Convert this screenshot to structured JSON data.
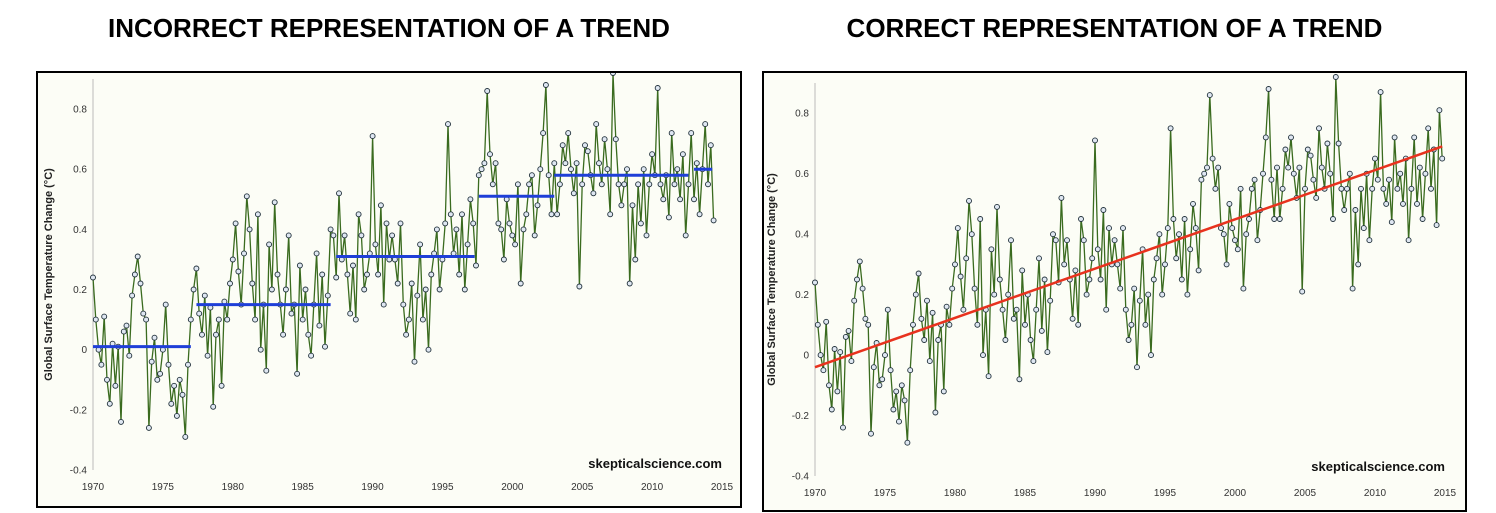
{
  "titles": {
    "left": "INCORRECT REPRESENTATION  OF A TREND",
    "right": "CORRECT REPRESENTATION  OF A TREND"
  },
  "chart_data": [
    {
      "type": "line",
      "ylabel": "Global Surface Temperature Change (°C)",
      "xlim": [
        1970,
        2015
      ],
      "ylim": [
        -0.4,
        0.9
      ],
      "x_ticks": [
        "1970",
        "1975",
        "1980",
        "1985",
        "1990",
        "1995",
        "2000",
        "2005",
        "2010",
        "2015"
      ],
      "y_ticks": [
        "-0.4",
        "-0.2",
        "0",
        "0.2",
        "0.4",
        "0.6",
        "0.8"
      ],
      "grid": false,
      "watermark": "skepticalscience.com",
      "series_color": "#3a6b1f",
      "marker_color": "#dfe7f2",
      "x": [
        1970.0,
        1970.2,
        1970.4,
        1970.6,
        1970.8,
        1971.0,
        1971.2,
        1971.4,
        1971.6,
        1971.8,
        1972.0,
        1972.2,
        1972.4,
        1972.6,
        1972.8,
        1973.0,
        1973.2,
        1973.4,
        1973.6,
        1973.8,
        1974.0,
        1974.2,
        1974.4,
        1974.6,
        1974.8,
        1975.0,
        1975.2,
        1975.4,
        1975.6,
        1975.8,
        1976.0,
        1976.2,
        1976.4,
        1976.6,
        1976.8,
        1977.0,
        1977.2,
        1977.4,
        1977.6,
        1977.8,
        1978.0,
        1978.2,
        1978.4,
        1978.6,
        1978.8,
        1979.0,
        1979.2,
        1979.4,
        1979.6,
        1979.8,
        1980.0,
        1980.2,
        1980.4,
        1980.6,
        1980.8,
        1981.0,
        1981.2,
        1981.4,
        1981.6,
        1981.8,
        1982.0,
        1982.2,
        1982.4,
        1982.6,
        1982.8,
        1983.0,
        1983.2,
        1983.4,
        1983.6,
        1983.8,
        1984.0,
        1984.2,
        1984.4,
        1984.6,
        1984.8,
        1985.0,
        1985.2,
        1985.4,
        1985.6,
        1985.8,
        1986.0,
        1986.2,
        1986.4,
        1986.6,
        1986.8,
        1987.0,
        1987.2,
        1987.4,
        1987.6,
        1987.8,
        1988.0,
        1988.2,
        1988.4,
        1988.6,
        1988.8,
        1989.0,
        1989.2,
        1989.4,
        1989.6,
        1989.8,
        1990.0,
        1990.2,
        1990.4,
        1990.6,
        1990.8,
        1991.0,
        1991.2,
        1991.4,
        1991.6,
        1991.8,
        1992.0,
        1992.2,
        1992.4,
        1992.6,
        1992.8,
        1993.0,
        1993.2,
        1993.4,
        1993.6,
        1993.8,
        1994.0,
        1994.2,
        1994.4,
        1994.6,
        1994.8,
        1995.0,
        1995.2,
        1995.4,
        1995.6,
        1995.8,
        1996.0,
        1996.2,
        1996.4,
        1996.6,
        1996.8,
        1997.0,
        1997.2,
        1997.4,
        1997.6,
        1997.8,
        1998.0,
        1998.2,
        1998.4,
        1998.6,
        1998.8,
        1999.0,
        1999.2,
        1999.4,
        1999.6,
        1999.8,
        2000.0,
        2000.2,
        2000.4,
        2000.6,
        2000.8,
        2001.0,
        2001.2,
        2001.4,
        2001.6,
        2001.8,
        2002.0,
        2002.2,
        2002.4,
        2002.6,
        2002.8,
        2003.0,
        2003.2,
        2003.4,
        2003.6,
        2003.8,
        2004.0,
        2004.2,
        2004.4,
        2004.6,
        2004.8,
        2005.0,
        2005.2,
        2005.4,
        2005.6,
        2005.8,
        2006.0,
        2006.2,
        2006.4,
        2006.6,
        2006.8,
        2007.0,
        2007.2,
        2007.4,
        2007.6,
        2007.8,
        2008.0,
        2008.2,
        2008.4,
        2008.6,
        2008.8,
        2009.0,
        2009.2,
        2009.4,
        2009.6,
        2009.8,
        2010.0,
        2010.2,
        2010.4,
        2010.6,
        2010.8,
        2011.0,
        2011.2,
        2011.4,
        2011.6,
        2011.8,
        2012.0,
        2012.2,
        2012.4,
        2012.6,
        2012.8,
        2013.0,
        2013.2,
        2013.4,
        2013.6,
        2013.8,
        2014.0,
        2014.2,
        2014.4
      ],
      "y": [
        0.24,
        0.1,
        0.0,
        -0.05,
        0.11,
        -0.1,
        -0.18,
        0.02,
        -0.12,
        0.01,
        -0.24,
        0.06,
        0.08,
        -0.02,
        0.18,
        0.25,
        0.31,
        0.22,
        0.12,
        0.1,
        -0.26,
        -0.04,
        0.04,
        -0.1,
        -0.08,
        0.0,
        0.15,
        -0.05,
        -0.18,
        -0.12,
        -0.22,
        -0.1,
        -0.15,
        -0.29,
        -0.05,
        0.1,
        0.2,
        0.27,
        0.12,
        0.05,
        0.18,
        -0.02,
        0.14,
        -0.19,
        0.05,
        0.1,
        -0.12,
        0.16,
        0.1,
        0.22,
        0.3,
        0.42,
        0.26,
        0.15,
        0.32,
        0.51,
        0.4,
        0.22,
        0.1,
        0.45,
        0.0,
        0.15,
        -0.07,
        0.35,
        0.2,
        0.49,
        0.25,
        0.15,
        0.05,
        0.2,
        0.38,
        0.12,
        0.15,
        -0.08,
        0.28,
        0.1,
        0.2,
        0.05,
        -0.02,
        0.15,
        0.32,
        0.08,
        0.25,
        0.01,
        0.18,
        0.4,
        0.38,
        0.24,
        0.52,
        0.3,
        0.38,
        0.25,
        0.12,
        0.28,
        0.1,
        0.45,
        0.38,
        0.2,
        0.25,
        0.32,
        0.71,
        0.35,
        0.25,
        0.48,
        0.15,
        0.42,
        0.3,
        0.38,
        0.3,
        0.22,
        0.42,
        0.15,
        0.05,
        0.1,
        0.22,
        -0.04,
        0.18,
        0.35,
        0.1,
        0.2,
        0.0,
        0.25,
        0.32,
        0.4,
        0.2,
        0.3,
        0.42,
        0.75,
        0.45,
        0.32,
        0.4,
        0.25,
        0.45,
        0.2,
        0.35,
        0.5,
        0.42,
        0.28,
        0.58,
        0.6,
        0.62,
        0.86,
        0.65,
        0.55,
        0.62,
        0.42,
        0.4,
        0.3,
        0.5,
        0.42,
        0.38,
        0.35,
        0.55,
        0.22,
        0.4,
        0.45,
        0.55,
        0.58,
        0.38,
        0.48,
        0.6,
        0.72,
        0.88,
        0.58,
        0.45,
        0.62,
        0.45,
        0.55,
        0.68,
        0.62,
        0.72,
        0.6,
        0.52,
        0.62,
        0.21,
        0.55,
        0.68,
        0.66,
        0.58,
        0.52,
        0.75,
        0.62,
        0.55,
        0.7,
        0.6,
        0.45,
        0.92,
        0.7,
        0.55,
        0.48,
        0.55,
        0.6,
        0.22,
        0.48,
        0.3,
        0.55,
        0.42,
        0.6,
        0.38,
        0.55,
        0.65,
        0.58,
        0.87,
        0.55,
        0.5,
        0.58,
        0.44,
        0.72,
        0.55,
        0.6,
        0.5,
        0.65,
        0.38,
        0.55,
        0.72,
        0.5,
        0.62,
        0.45,
        0.6,
        0.75,
        0.55,
        0.68,
        0.43
      ],
      "segments": [
        {
          "x0": 1970.0,
          "x1": 1977.0,
          "value": 0.01
        },
        {
          "x0": 1977.4,
          "x1": 1987.0,
          "value": 0.15
        },
        {
          "x0": 1987.4,
          "x1": 1997.3,
          "value": 0.31
        },
        {
          "x0": 1997.6,
          "x1": 2003.0,
          "value": 0.51
        },
        {
          "x0": 2003.0,
          "x1": 2012.6,
          "value": 0.58
        },
        {
          "x0": 2013.0,
          "x1": 2014.3,
          "value": 0.6
        }
      ],
      "segment_color": "#1f3fd8"
    },
    {
      "type": "line",
      "ylabel": "Global Surface Temperature Change (°C)",
      "xlim": [
        1970,
        2015
      ],
      "ylim": [
        -0.4,
        0.9
      ],
      "x_ticks": [
        "1970",
        "1975",
        "1980",
        "1985",
        "1990",
        "1995",
        "2000",
        "2005",
        "2010",
        "2015"
      ],
      "y_ticks": [
        "-0.4",
        "-0.2",
        "0",
        "0.2",
        "0.4",
        "0.6",
        "0.8"
      ],
      "grid": false,
      "watermark": "skepticalscience.com",
      "series_color": "#3a6b1f",
      "marker_color": "#dfe7f2",
      "x": [
        1970.0,
        1970.2,
        1970.4,
        1970.6,
        1970.8,
        1971.0,
        1971.2,
        1971.4,
        1971.6,
        1971.8,
        1972.0,
        1972.2,
        1972.4,
        1972.6,
        1972.8,
        1973.0,
        1973.2,
        1973.4,
        1973.6,
        1973.8,
        1974.0,
        1974.2,
        1974.4,
        1974.6,
        1974.8,
        1975.0,
        1975.2,
        1975.4,
        1975.6,
        1975.8,
        1976.0,
        1976.2,
        1976.4,
        1976.6,
        1976.8,
        1977.0,
        1977.2,
        1977.4,
        1977.6,
        1977.8,
        1978.0,
        1978.2,
        1978.4,
        1978.6,
        1978.8,
        1979.0,
        1979.2,
        1979.4,
        1979.6,
        1979.8,
        1980.0,
        1980.2,
        1980.4,
        1980.6,
        1980.8,
        1981.0,
        1981.2,
        1981.4,
        1981.6,
        1981.8,
        1982.0,
        1982.2,
        1982.4,
        1982.6,
        1982.8,
        1983.0,
        1983.2,
        1983.4,
        1983.6,
        1983.8,
        1984.0,
        1984.2,
        1984.4,
        1984.6,
        1984.8,
        1985.0,
        1985.2,
        1985.4,
        1985.6,
        1985.8,
        1986.0,
        1986.2,
        1986.4,
        1986.6,
        1986.8,
        1987.0,
        1987.2,
        1987.4,
        1987.6,
        1987.8,
        1988.0,
        1988.2,
        1988.4,
        1988.6,
        1988.8,
        1989.0,
        1989.2,
        1989.4,
        1989.6,
        1989.8,
        1990.0,
        1990.2,
        1990.4,
        1990.6,
        1990.8,
        1991.0,
        1991.2,
        1991.4,
        1991.6,
        1991.8,
        1992.0,
        1992.2,
        1992.4,
        1992.6,
        1992.8,
        1993.0,
        1993.2,
        1993.4,
        1993.6,
        1993.8,
        1994.0,
        1994.2,
        1994.4,
        1994.6,
        1994.8,
        1995.0,
        1995.2,
        1995.4,
        1995.6,
        1995.8,
        1996.0,
        1996.2,
        1996.4,
        1996.6,
        1996.8,
        1997.0,
        1997.2,
        1997.4,
        1997.6,
        1997.8,
        1998.0,
        1998.2,
        1998.4,
        1998.6,
        1998.8,
        1999.0,
        1999.2,
        1999.4,
        1999.6,
        1999.8,
        2000.0,
        2000.2,
        2000.4,
        2000.6,
        2000.8,
        2001.0,
        2001.2,
        2001.4,
        2001.6,
        2001.8,
        2002.0,
        2002.2,
        2002.4,
        2002.6,
        2002.8,
        2003.0,
        2003.2,
        2003.4,
        2003.6,
        2003.8,
        2004.0,
        2004.2,
        2004.4,
        2004.6,
        2004.8,
        2005.0,
        2005.2,
        2005.4,
        2005.6,
        2005.8,
        2006.0,
        2006.2,
        2006.4,
        2006.6,
        2006.8,
        2007.0,
        2007.2,
        2007.4,
        2007.6,
        2007.8,
        2008.0,
        2008.2,
        2008.4,
        2008.6,
        2008.8,
        2009.0,
        2009.2,
        2009.4,
        2009.6,
        2009.8,
        2010.0,
        2010.2,
        2010.4,
        2010.6,
        2010.8,
        2011.0,
        2011.2,
        2011.4,
        2011.6,
        2011.8,
        2012.0,
        2012.2,
        2012.4,
        2012.6,
        2012.8,
        2013.0,
        2013.2,
        2013.4,
        2013.6,
        2013.8,
        2014.0,
        2014.2,
        2014.4,
        2014.6,
        2014.8
      ],
      "y": [
        0.24,
        0.1,
        0.0,
        -0.05,
        0.11,
        -0.1,
        -0.18,
        0.02,
        -0.12,
        0.01,
        -0.24,
        0.06,
        0.08,
        -0.02,
        0.18,
        0.25,
        0.31,
        0.22,
        0.12,
        0.1,
        -0.26,
        -0.04,
        0.04,
        -0.1,
        -0.08,
        0.0,
        0.15,
        -0.05,
        -0.18,
        -0.12,
        -0.22,
        -0.1,
        -0.15,
        -0.29,
        -0.05,
        0.1,
        0.2,
        0.27,
        0.12,
        0.05,
        0.18,
        -0.02,
        0.14,
        -0.19,
        0.05,
        0.1,
        -0.12,
        0.16,
        0.1,
        0.22,
        0.3,
        0.42,
        0.26,
        0.15,
        0.32,
        0.51,
        0.4,
        0.22,
        0.1,
        0.45,
        0.0,
        0.15,
        -0.07,
        0.35,
        0.2,
        0.49,
        0.25,
        0.15,
        0.05,
        0.2,
        0.38,
        0.12,
        0.15,
        -0.08,
        0.28,
        0.1,
        0.2,
        0.05,
        -0.02,
        0.15,
        0.32,
        0.08,
        0.25,
        0.01,
        0.18,
        0.4,
        0.38,
        0.24,
        0.52,
        0.3,
        0.38,
        0.25,
        0.12,
        0.28,
        0.1,
        0.45,
        0.38,
        0.2,
        0.25,
        0.32,
        0.71,
        0.35,
        0.25,
        0.48,
        0.15,
        0.42,
        0.3,
        0.38,
        0.3,
        0.22,
        0.42,
        0.15,
        0.05,
        0.1,
        0.22,
        -0.04,
        0.18,
        0.35,
        0.1,
        0.2,
        0.0,
        0.25,
        0.32,
        0.4,
        0.2,
        0.3,
        0.42,
        0.75,
        0.45,
        0.32,
        0.4,
        0.25,
        0.45,
        0.2,
        0.35,
        0.5,
        0.42,
        0.28,
        0.58,
        0.6,
        0.62,
        0.86,
        0.65,
        0.55,
        0.62,
        0.42,
        0.4,
        0.3,
        0.5,
        0.42,
        0.38,
        0.35,
        0.55,
        0.22,
        0.4,
        0.45,
        0.55,
        0.58,
        0.38,
        0.48,
        0.6,
        0.72,
        0.88,
        0.58,
        0.45,
        0.62,
        0.45,
        0.55,
        0.68,
        0.62,
        0.72,
        0.6,
        0.52,
        0.62,
        0.21,
        0.55,
        0.68,
        0.66,
        0.58,
        0.52,
        0.75,
        0.62,
        0.55,
        0.7,
        0.6,
        0.45,
        0.92,
        0.7,
        0.55,
        0.48,
        0.55,
        0.6,
        0.22,
        0.48,
        0.3,
        0.55,
        0.42,
        0.6,
        0.38,
        0.55,
        0.65,
        0.58,
        0.87,
        0.55,
        0.5,
        0.58,
        0.44,
        0.72,
        0.55,
        0.6,
        0.5,
        0.65,
        0.38,
        0.55,
        0.72,
        0.5,
        0.62,
        0.45,
        0.6,
        0.75,
        0.55,
        0.68,
        0.43,
        0.81,
        0.65
      ],
      "trend": {
        "x0": 1970.0,
        "y0": -0.04,
        "x1": 2014.8,
        "y1": 0.69
      },
      "trend_color": "#e8321e"
    }
  ]
}
